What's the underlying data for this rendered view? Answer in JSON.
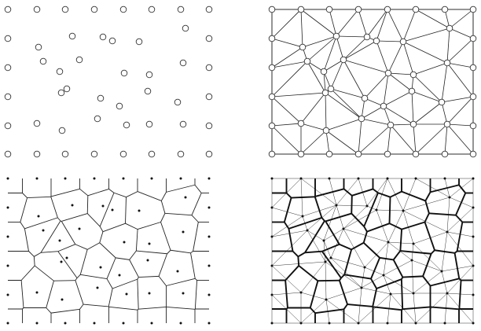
{
  "figure": {
    "panels": [
      {
        "id": "point-set",
        "kind": "points"
      },
      {
        "id": "delaunay-triangulation",
        "kind": "delaunay"
      },
      {
        "id": "voronoi-diagram",
        "kind": "voronoi"
      },
      {
        "id": "voronoi-delaunay-overlay",
        "kind": "overlay"
      }
    ],
    "colors": {
      "stroke": "#222222",
      "background": "#ffffff"
    }
  }
}
